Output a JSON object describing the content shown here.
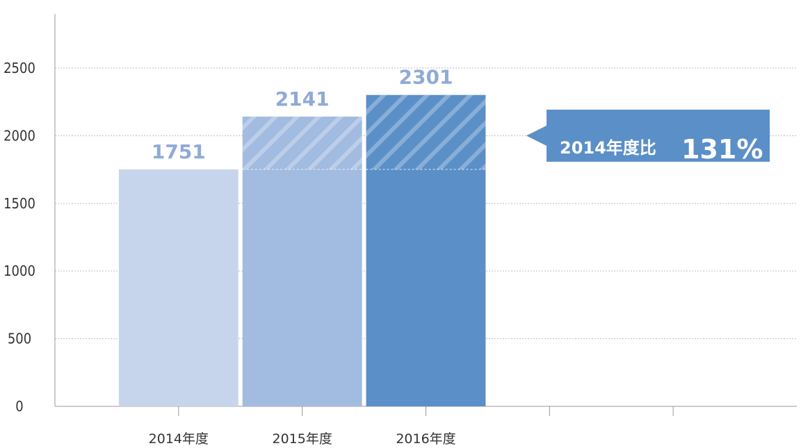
{
  "chart_data": {
    "type": "bar",
    "title": "",
    "xlabel": "",
    "ylabel": "",
    "categories": [
      "2014年度",
      "2015年度",
      "2016年度"
    ],
    "values": [
      1751,
      2141,
      2301
    ],
    "value_labels": [
      "1751",
      "2141",
      "2301"
    ],
    "bar_colors": [
      "#c7d5ec",
      "#a2bbe0",
      "#5b8fc7"
    ],
    "baseline_value": 1751,
    "ylim": [
      0,
      2900
    ],
    "yticks": [
      0,
      500,
      1000,
      1500,
      2000,
      2500
    ],
    "ytick_labels": [
      "0",
      "500",
      "1000",
      "1500",
      "2000",
      "2500"
    ],
    "x_slots": 6,
    "grid": true,
    "annotation": {
      "text": "2014年度比",
      "value": "131%",
      "color": "#5b8fc7",
      "anchor_value": 2000
    }
  }
}
